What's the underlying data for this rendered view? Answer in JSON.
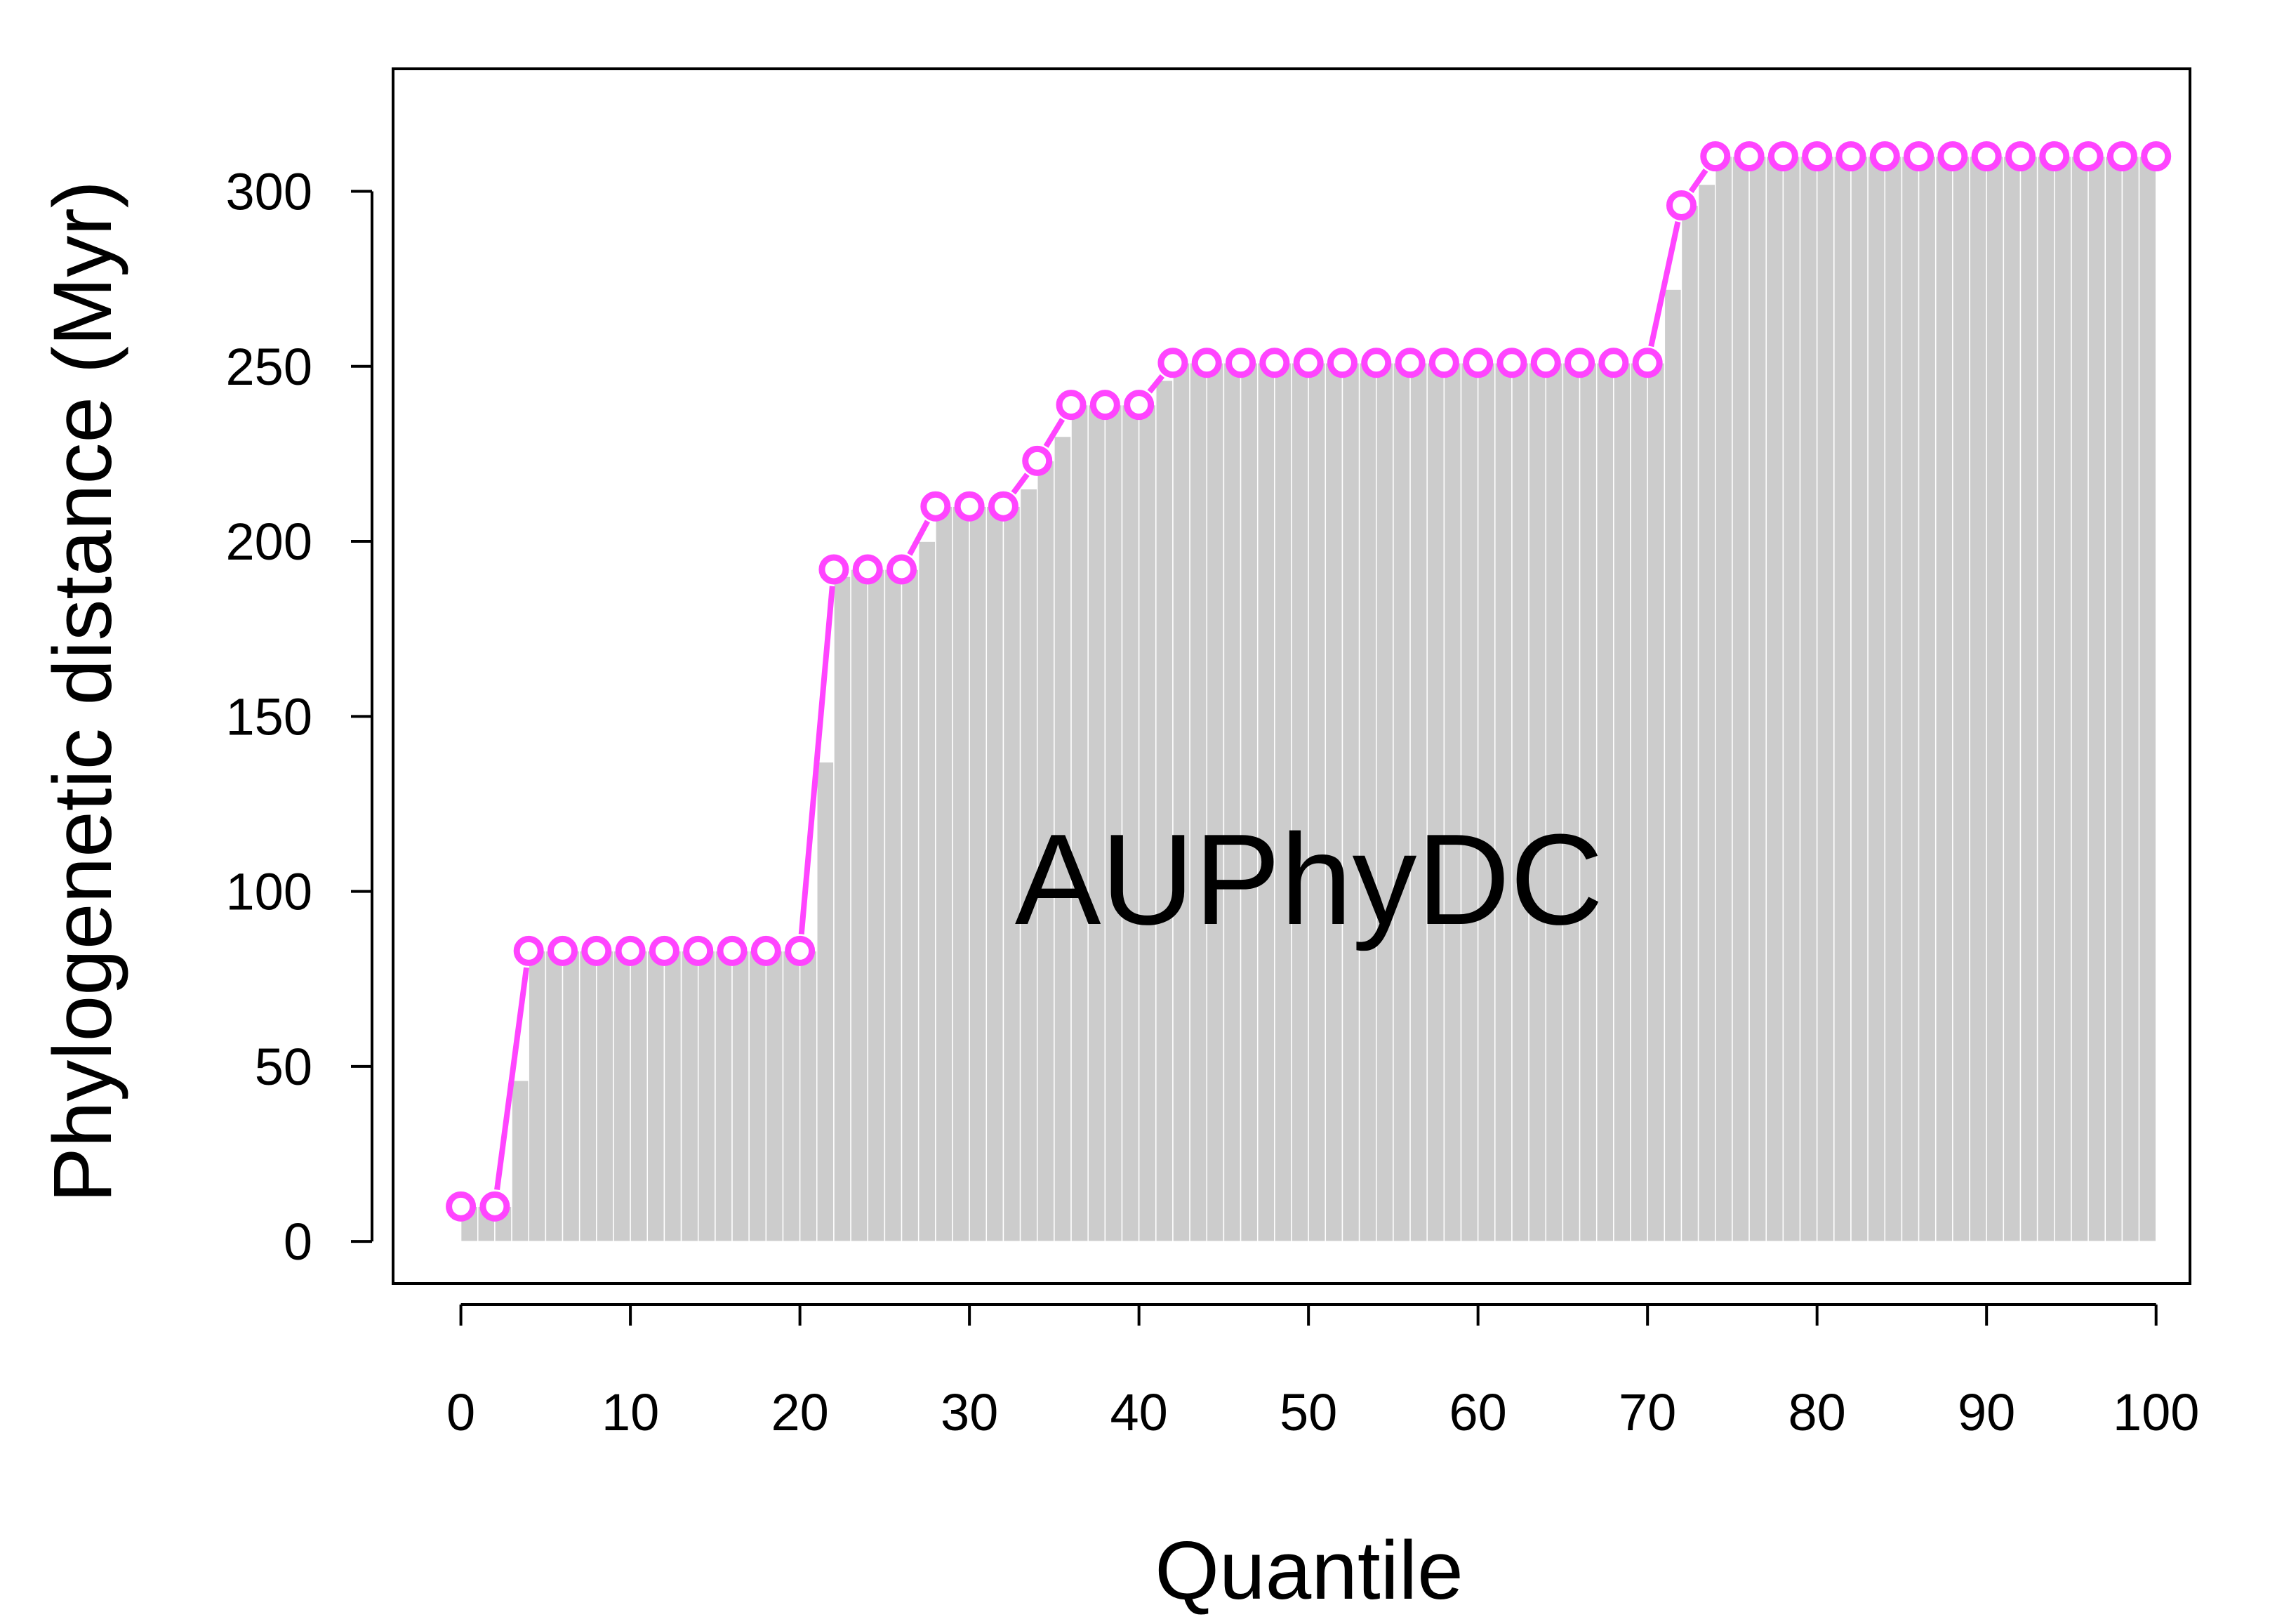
{
  "chart_data": {
    "type": "bar",
    "xlabel": "Quantile",
    "ylabel": "Phylogenetic distance (Myr)",
    "annotation": "AUPhyDC",
    "xlim": [
      -4,
      102
    ],
    "ylim": [
      -12,
      335
    ],
    "xticks": [
      0,
      10,
      20,
      30,
      40,
      50,
      60,
      70,
      80,
      90,
      100
    ],
    "yticks": [
      0,
      50,
      100,
      150,
      200,
      250,
      300
    ],
    "grid": false,
    "legend": "none",
    "colors": {
      "bars": "#cccccc",
      "bar_separator": "#ffffff",
      "points": "#ff44ff",
      "point_fill": "#ffffff",
      "axis": "#000000"
    },
    "bars": {
      "x": [
        0,
        1,
        2,
        3,
        4,
        5,
        6,
        7,
        8,
        9,
        10,
        11,
        12,
        13,
        14,
        15,
        16,
        17,
        18,
        19,
        20,
        21,
        22,
        23,
        24,
        25,
        26,
        27,
        28,
        29,
        30,
        31,
        32,
        33,
        34,
        35,
        36,
        37,
        38,
        39,
        40,
        41,
        42,
        43,
        44,
        45,
        46,
        47,
        48,
        49,
        50,
        51,
        52,
        53,
        54,
        55,
        56,
        57,
        58,
        59,
        60,
        61,
        62,
        63,
        64,
        65,
        66,
        67,
        68,
        69,
        70,
        71,
        72,
        73,
        74,
        75,
        76,
        77,
        78,
        79,
        80,
        81,
        82,
        83,
        84,
        85,
        86,
        87,
        88,
        89,
        90,
        91,
        92,
        93,
        94,
        95,
        96,
        97,
        98,
        99
      ],
      "values": [
        10,
        10,
        10,
        46,
        83,
        83,
        83,
        83,
        83,
        83,
        83,
        83,
        83,
        83,
        83,
        83,
        83,
        83,
        83,
        83,
        83,
        137,
        190,
        192,
        192,
        192,
        192,
        200,
        210,
        210,
        210,
        210,
        210,
        215,
        223,
        230,
        239,
        239,
        239,
        239,
        239,
        246,
        251,
        251,
        251,
        251,
        251,
        251,
        251,
        251,
        251,
        251,
        251,
        251,
        251,
        251,
        251,
        251,
        251,
        251,
        251,
        251,
        251,
        251,
        251,
        251,
        251,
        251,
        251,
        251,
        251,
        272,
        296,
        302,
        310,
        310,
        310,
        310,
        310,
        310,
        310,
        310,
        310,
        310,
        310,
        310,
        310,
        310,
        310,
        310,
        310,
        310,
        310,
        310,
        310,
        310,
        310,
        310,
        310,
        310
      ]
    },
    "points": {
      "x": [
        0,
        2,
        4,
        6,
        8,
        10,
        12,
        14,
        16,
        18,
        20,
        22,
        24,
        26,
        28,
        30,
        32,
        34,
        36,
        38,
        40,
        42,
        44,
        46,
        48,
        50,
        52,
        54,
        56,
        58,
        60,
        62,
        64,
        66,
        68,
        70,
        72,
        74,
        76,
        78,
        80,
        82,
        84,
        86,
        88,
        90,
        92,
        94,
        96,
        98,
        100
      ],
      "y": [
        10,
        10,
        83,
        83,
        83,
        83,
        83,
        83,
        83,
        83,
        83,
        192,
        192,
        192,
        210,
        210,
        210,
        223,
        239,
        239,
        239,
        251,
        251,
        251,
        251,
        251,
        251,
        251,
        251,
        251,
        251,
        251,
        251,
        251,
        251,
        251,
        296,
        310,
        310,
        310,
        310,
        310,
        310,
        310,
        310,
        310,
        310,
        310,
        310,
        310,
        310
      ]
    }
  }
}
